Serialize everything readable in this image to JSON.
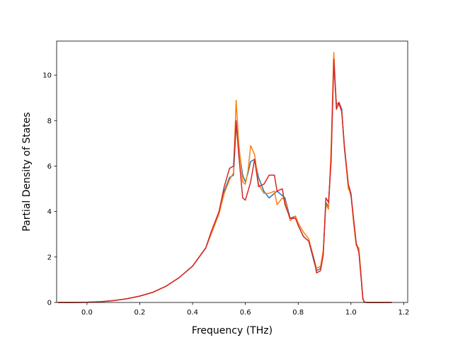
{
  "chart_data": {
    "type": "line",
    "title": "",
    "xlabel": "Frequency (THz)",
    "ylabel": "Partial Density of States",
    "xlim": [
      -0.115,
      1.215
    ],
    "ylim": [
      0,
      11.5
    ],
    "xticks": [
      0.0,
      0.2,
      0.4,
      0.6,
      0.8,
      1.0,
      1.2
    ],
    "xtick_labels": [
      "0.0",
      "0.2",
      "0.4",
      "0.6",
      "0.8",
      "1.0",
      "1.2"
    ],
    "yticks": [
      0,
      2,
      4,
      6,
      8,
      10
    ],
    "ytick_labels": [
      "0",
      "2",
      "4",
      "6",
      "8",
      "10"
    ],
    "grid": false,
    "legend": "none",
    "series": [
      {
        "color": "#1f77b4",
        "x": [
          -0.11,
          -0.05,
          0.0,
          0.05,
          0.1,
          0.15,
          0.2,
          0.25,
          0.3,
          0.35,
          0.4,
          0.45,
          0.47,
          0.5,
          0.52,
          0.54,
          0.555,
          0.565,
          0.575,
          0.59,
          0.6,
          0.61,
          0.62,
          0.635,
          0.65,
          0.67,
          0.69,
          0.71,
          0.72,
          0.74,
          0.75,
          0.77,
          0.79,
          0.8,
          0.82,
          0.84,
          0.86,
          0.87,
          0.885,
          0.895,
          0.905,
          0.915,
          0.925,
          0.935,
          0.945,
          0.955,
          0.965,
          0.975,
          0.99,
          1.0,
          1.01,
          1.02,
          1.03,
          1.04,
          1.045,
          1.05,
          1.06,
          1.1,
          1.155
        ],
        "y": [
          0,
          0,
          0.01,
          0.03,
          0.08,
          0.16,
          0.28,
          0.45,
          0.72,
          1.1,
          1.6,
          2.4,
          3.0,
          3.9,
          4.9,
          5.5,
          5.6,
          7.8,
          6.8,
          5.6,
          5.3,
          5.7,
          6.2,
          6.3,
          5.5,
          4.9,
          4.6,
          4.8,
          4.9,
          4.7,
          4.6,
          3.7,
          3.8,
          3.4,
          2.9,
          2.7,
          1.8,
          1.4,
          1.5,
          2.2,
          4.4,
          4.2,
          6.5,
          10.6,
          8.7,
          8.8,
          8.5,
          6.8,
          5.1,
          4.7,
          3.6,
          2.6,
          2.3,
          0.9,
          0.2,
          0.02,
          0,
          0,
          0
        ]
      },
      {
        "color": "#ff7f0e",
        "x": [
          -0.11,
          -0.05,
          0.0,
          0.05,
          0.1,
          0.15,
          0.2,
          0.25,
          0.3,
          0.35,
          0.4,
          0.45,
          0.47,
          0.5,
          0.52,
          0.54,
          0.555,
          0.565,
          0.575,
          0.59,
          0.6,
          0.61,
          0.62,
          0.635,
          0.65,
          0.67,
          0.69,
          0.71,
          0.72,
          0.74,
          0.75,
          0.77,
          0.79,
          0.8,
          0.82,
          0.84,
          0.86,
          0.87,
          0.885,
          0.895,
          0.905,
          0.915,
          0.925,
          0.935,
          0.945,
          0.955,
          0.965,
          0.975,
          0.99,
          1.0,
          1.01,
          1.02,
          1.03,
          1.04,
          1.045,
          1.05,
          1.06,
          1.1,
          1.155
        ],
        "y": [
          0,
          0,
          0.01,
          0.03,
          0.08,
          0.16,
          0.28,
          0.45,
          0.72,
          1.1,
          1.6,
          2.4,
          3.0,
          3.9,
          4.8,
          5.4,
          5.7,
          8.9,
          7.0,
          5.3,
          5.2,
          5.8,
          6.9,
          6.5,
          5.2,
          4.8,
          4.8,
          4.9,
          4.3,
          4.6,
          4.5,
          3.6,
          3.8,
          3.5,
          3.1,
          2.8,
          1.9,
          1.5,
          1.6,
          2.3,
          4.3,
          4.1,
          6.8,
          11.0,
          8.6,
          8.7,
          8.4,
          6.9,
          5.0,
          4.8,
          3.5,
          2.5,
          2.4,
          1.0,
          0.2,
          0.02,
          0,
          0,
          0
        ]
      },
      {
        "color": "#d62728",
        "x": [
          -0.11,
          -0.05,
          0.0,
          0.05,
          0.1,
          0.15,
          0.2,
          0.25,
          0.3,
          0.35,
          0.4,
          0.45,
          0.47,
          0.5,
          0.52,
          0.54,
          0.555,
          0.565,
          0.575,
          0.59,
          0.6,
          0.61,
          0.62,
          0.635,
          0.65,
          0.67,
          0.69,
          0.71,
          0.72,
          0.74,
          0.75,
          0.77,
          0.79,
          0.8,
          0.82,
          0.84,
          0.86,
          0.87,
          0.885,
          0.895,
          0.905,
          0.915,
          0.925,
          0.935,
          0.945,
          0.955,
          0.965,
          0.975,
          0.99,
          1.0,
          1.01,
          1.02,
          1.03,
          1.04,
          1.045,
          1.05,
          1.06,
          1.1,
          1.155
        ],
        "y": [
          0,
          0,
          0.01,
          0.03,
          0.08,
          0.16,
          0.28,
          0.45,
          0.72,
          1.1,
          1.6,
          2.4,
          3.1,
          4.0,
          5.1,
          5.9,
          6.0,
          8.0,
          6.5,
          4.6,
          4.5,
          4.9,
          5.3,
          6.3,
          5.1,
          5.2,
          5.6,
          5.6,
          4.9,
          5.0,
          4.3,
          3.7,
          3.7,
          3.4,
          2.9,
          2.7,
          1.9,
          1.3,
          1.4,
          2.1,
          4.6,
          4.4,
          6.2,
          10.7,
          8.5,
          8.8,
          8.4,
          6.9,
          5.2,
          4.8,
          3.7,
          2.6,
          2.2,
          0.9,
          0.15,
          0.02,
          0,
          0,
          0
        ]
      }
    ]
  }
}
